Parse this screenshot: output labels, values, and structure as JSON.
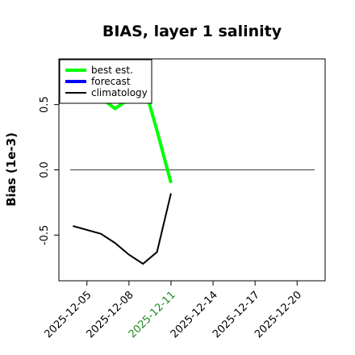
{
  "chart_data": {
    "type": "line",
    "title": "BIAS, layer 1 salinity",
    "xlabel": "",
    "ylabel": "Bias (1e-3)",
    "x_ticks": [
      "2025-12-05",
      "2025-12-08",
      "2025-12-11",
      "2025-12-14",
      "2025-12-17",
      "2025-12-20"
    ],
    "highlight_tick": "2025-12-11",
    "highlight_color": "#228b22",
    "xlim": [
      "2025-12-03",
      "2025-12-22"
    ],
    "ylim": [
      -0.85,
      0.85
    ],
    "y_ticks": [
      -0.5,
      0.0,
      0.5
    ],
    "zero_line": true,
    "grid": false,
    "legend": {
      "position": "top-left",
      "entries": [
        {
          "name": "best est.",
          "color": "#00ff00"
        },
        {
          "name": "forecast",
          "color": "#0000ff"
        },
        {
          "name": "climatology",
          "color": "#000000"
        }
      ]
    },
    "series": [
      {
        "name": "best est.",
        "color": "#00ff00",
        "x": [
          "2025-12-06",
          "2025-12-07",
          "2025-12-08",
          "2025-12-09",
          "2025-12-10",
          "2025-12-11"
        ],
        "values": [
          0.55,
          0.47,
          0.54,
          0.68,
          0.3,
          -0.1
        ]
      },
      {
        "name": "forecast",
        "color": "#0000ff",
        "x": [],
        "values": []
      },
      {
        "name": "climatology",
        "color": "#000000",
        "x": [
          "2025-12-04",
          "2025-12-06",
          "2025-12-07",
          "2025-12-08",
          "2025-12-09",
          "2025-12-10",
          "2025-12-11"
        ],
        "values": [
          -0.43,
          -0.49,
          -0.56,
          -0.65,
          -0.72,
          -0.63,
          -0.18
        ]
      }
    ]
  }
}
